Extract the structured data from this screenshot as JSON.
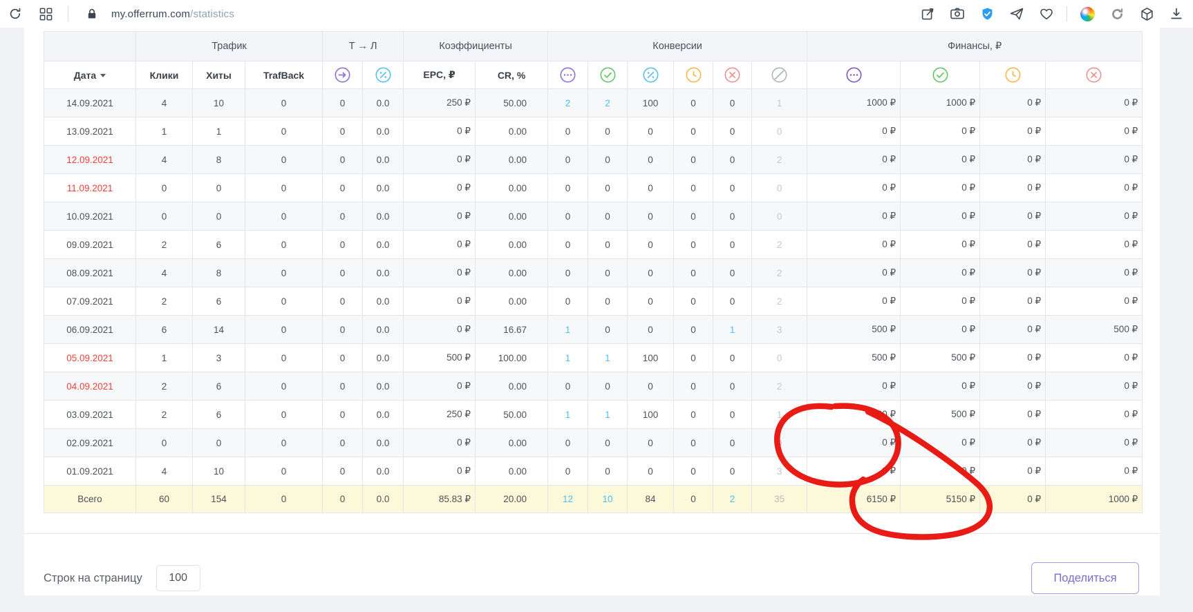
{
  "browser": {
    "url_host": "my.offerrum.com",
    "url_path": "/statistics",
    "toolbar_icons_left": [
      "reload-icon",
      "apps-grid-icon",
      "lock-icon"
    ],
    "toolbar_icons_right": [
      "share-edit-icon",
      "screenshot-icon",
      "shield-check-icon",
      "send-icon",
      "heart-icon",
      "color-wheel-icon",
      "refresh-icon",
      "cube-icon",
      "download-icon"
    ]
  },
  "colors": {
    "accent_purple": "#8e6fd8",
    "accent_purple_dark": "#7e57c2",
    "accent_green": "#62c462",
    "accent_blue": "#52c1f0",
    "accent_yellow": "#f7b84a",
    "accent_red": "#f08f8f",
    "accent_gray": "#aeb4bc",
    "link_blue": "#4fc0ef",
    "date_red": "#f2413b",
    "total_row_bg": "#fcf8da",
    "annotation_red": "#e8120c"
  },
  "table": {
    "groups": [
      {
        "label": "",
        "span": 1
      },
      {
        "label": "Трафик",
        "span": 3
      },
      {
        "label": "Т → Л",
        "span": 2
      },
      {
        "label": "Коэффициенты",
        "span": 2
      },
      {
        "label": "Конверсии",
        "span": 6
      },
      {
        "label": "Финансы, ₽",
        "span": 4
      }
    ],
    "columns": [
      {
        "label": "Дата",
        "sortable": true
      },
      {
        "label": "Клики"
      },
      {
        "label": "Хиты"
      },
      {
        "label": "TrafBack"
      },
      {
        "icon": "arrow-right-circle-icon",
        "color": "#8e6fd8"
      },
      {
        "icon": "percent-circle-icon",
        "color": "#52c1f0"
      },
      {
        "label": "EPC, ₽"
      },
      {
        "label": "CR, %"
      },
      {
        "icon": "ellipsis-circle-icon",
        "color": "#8e6fd8"
      },
      {
        "icon": "check-circle-icon",
        "color": "#62c462"
      },
      {
        "icon": "percent-circle-icon",
        "color": "#52c1f0"
      },
      {
        "icon": "clock-circle-icon",
        "color": "#f7b84a"
      },
      {
        "icon": "cross-circle-icon",
        "color": "#f08f8f"
      },
      {
        "icon": "slash-circle-icon",
        "color": "#aeb4bc"
      },
      {
        "icon": "ellipsis-circle-icon",
        "color": "#7e57c2"
      },
      {
        "icon": "check-circle-icon",
        "color": "#62c462"
      },
      {
        "icon": "clock-circle-icon",
        "color": "#f7b84a"
      },
      {
        "icon": "cross-circle-icon",
        "color": "#f08f8f"
      }
    ],
    "rows": [
      {
        "date_red": false,
        "cells": [
          "14.09.2021",
          "4",
          "10",
          "0",
          "0",
          "0.0",
          "250 ₽",
          "50.00",
          "2",
          "2",
          "100",
          "0",
          "0",
          "1",
          "1000 ₽",
          "1000 ₽",
          "0 ₽",
          "0 ₽"
        ]
      },
      {
        "date_red": false,
        "cells": [
          "13.09.2021",
          "1",
          "1",
          "0",
          "0",
          "0.0",
          "0 ₽",
          "0.00",
          "0",
          "0",
          "0",
          "0",
          "0",
          "0",
          "0 ₽",
          "0 ₽",
          "0 ₽",
          "0 ₽"
        ]
      },
      {
        "date_red": true,
        "cells": [
          "12.09.2021",
          "4",
          "8",
          "0",
          "0",
          "0.0",
          "0 ₽",
          "0.00",
          "0",
          "0",
          "0",
          "0",
          "0",
          "2",
          "0 ₽",
          "0 ₽",
          "0 ₽",
          "0 ₽"
        ]
      },
      {
        "date_red": true,
        "cells": [
          "11.09.2021",
          "0",
          "0",
          "0",
          "0",
          "0.0",
          "0 ₽",
          "0.00",
          "0",
          "0",
          "0",
          "0",
          "0",
          "0",
          "0 ₽",
          "0 ₽",
          "0 ₽",
          "0 ₽"
        ]
      },
      {
        "date_red": false,
        "cells": [
          "10.09.2021",
          "0",
          "0",
          "0",
          "0",
          "0.0",
          "0 ₽",
          "0.00",
          "0",
          "0",
          "0",
          "0",
          "0",
          "0",
          "0 ₽",
          "0 ₽",
          "0 ₽",
          "0 ₽"
        ]
      },
      {
        "date_red": false,
        "cells": [
          "09.09.2021",
          "2",
          "6",
          "0",
          "0",
          "0.0",
          "0 ₽",
          "0.00",
          "0",
          "0",
          "0",
          "0",
          "0",
          "2",
          "0 ₽",
          "0 ₽",
          "0 ₽",
          "0 ₽"
        ]
      },
      {
        "date_red": false,
        "cells": [
          "08.09.2021",
          "4",
          "8",
          "0",
          "0",
          "0.0",
          "0 ₽",
          "0.00",
          "0",
          "0",
          "0",
          "0",
          "0",
          "2",
          "0 ₽",
          "0 ₽",
          "0 ₽",
          "0 ₽"
        ]
      },
      {
        "date_red": false,
        "cells": [
          "07.09.2021",
          "2",
          "6",
          "0",
          "0",
          "0.0",
          "0 ₽",
          "0.00",
          "0",
          "0",
          "0",
          "0",
          "0",
          "2",
          "0 ₽",
          "0 ₽",
          "0 ₽",
          "0 ₽"
        ]
      },
      {
        "date_red": false,
        "cells": [
          "06.09.2021",
          "6",
          "14",
          "0",
          "0",
          "0.0",
          "0 ₽",
          "16.67",
          "1",
          "0",
          "0",
          "0",
          "1",
          "3",
          "500 ₽",
          "0 ₽",
          "0 ₽",
          "500 ₽"
        ]
      },
      {
        "date_red": true,
        "cells": [
          "05.09.2021",
          "1",
          "3",
          "0",
          "0",
          "0.0",
          "500 ₽",
          "100.00",
          "1",
          "1",
          "100",
          "0",
          "0",
          "0",
          "500 ₽",
          "500 ₽",
          "0 ₽",
          "0 ₽"
        ]
      },
      {
        "date_red": true,
        "cells": [
          "04.09.2021",
          "2",
          "6",
          "0",
          "0",
          "0.0",
          "0 ₽",
          "0.00",
          "0",
          "0",
          "0",
          "0",
          "0",
          "2",
          "0 ₽",
          "0 ₽",
          "0 ₽",
          "0 ₽"
        ]
      },
      {
        "date_red": false,
        "cells": [
          "03.09.2021",
          "2",
          "6",
          "0",
          "0",
          "0.0",
          "250 ₽",
          "50.00",
          "1",
          "1",
          "100",
          "0",
          "0",
          "1",
          "500 ₽",
          "500 ₽",
          "0 ₽",
          "0 ₽"
        ]
      },
      {
        "date_red": false,
        "cells": [
          "02.09.2021",
          "0",
          "0",
          "0",
          "0",
          "0.0",
          "0 ₽",
          "0.00",
          "0",
          "0",
          "0",
          "0",
          "0",
          "0",
          "0 ₽",
          "0 ₽",
          "0 ₽",
          "0 ₽"
        ]
      },
      {
        "date_red": false,
        "cells": [
          "01.09.2021",
          "4",
          "10",
          "0",
          "0",
          "0.0",
          "0 ₽",
          "0.00",
          "0",
          "0",
          "0",
          "0",
          "0",
          "3",
          "0 ₽",
          "0 ₽",
          "0 ₽",
          "0 ₽"
        ]
      }
    ],
    "total_row": {
      "cells": [
        "Всего",
        "60",
        "154",
        "0",
        "0",
        "0.0",
        "85.83 ₽",
        "20.00",
        "12",
        "10",
        "84",
        "0",
        "2",
        "35",
        "6150 ₽",
        "5150 ₽",
        "0 ₽",
        "1000 ₽"
      ]
    }
  },
  "footer": {
    "rows_per_page_label": "Строк на страницу",
    "rows_per_page_value": "100",
    "share_label": "Поделиться"
  }
}
